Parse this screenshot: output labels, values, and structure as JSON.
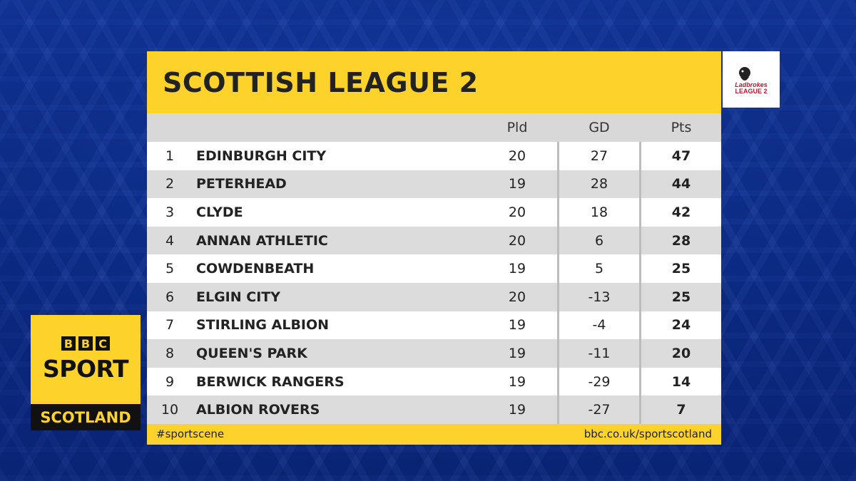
{
  "title": "SCOTTISH LEAGUE 2",
  "logo": {
    "line1": "Ladbrokes",
    "line2": "LEAGUE 2"
  },
  "columns": {
    "pld": "Pld",
    "gd": "GD",
    "pts": "Pts"
  },
  "rows": [
    {
      "pos": "1",
      "team": "EDINBURGH CITY",
      "pld": "20",
      "gd": "27",
      "pts": "47"
    },
    {
      "pos": "2",
      "team": "PETERHEAD",
      "pld": "19",
      "gd": "28",
      "pts": "44"
    },
    {
      "pos": "3",
      "team": "CLYDE",
      "pld": "20",
      "gd": "18",
      "pts": "42"
    },
    {
      "pos": "4",
      "team": "ANNAN ATHLETIC",
      "pld": "20",
      "gd": "6",
      "pts": "28"
    },
    {
      "pos": "5",
      "team": "COWDENBEATH",
      "pld": "19",
      "gd": "5",
      "pts": "25"
    },
    {
      "pos": "6",
      "team": "ELGIN CITY",
      "pld": "20",
      "gd": "-13",
      "pts": "25"
    },
    {
      "pos": "7",
      "team": "STIRLING ALBION",
      "pld": "19",
      "gd": "-4",
      "pts": "24"
    },
    {
      "pos": "8",
      "team": "QUEEN'S PARK",
      "pld": "19",
      "gd": "-11",
      "pts": "20"
    },
    {
      "pos": "9",
      "team": "BERWICK RANGERS",
      "pld": "19",
      "gd": "-29",
      "pts": "14"
    },
    {
      "pos": "10",
      "team": "ALBION ROVERS",
      "pld": "19",
      "gd": "-27",
      "pts": "7"
    }
  ],
  "footer": {
    "hashtag": "#sportscene",
    "url": "bbc.co.uk/sportscotland"
  },
  "brand": {
    "letters": [
      "B",
      "B",
      "C"
    ],
    "sport": "SPORT",
    "region": "SCOTLAND"
  },
  "colors": {
    "accent": "#fdd22b",
    "background": "#0f3aa8",
    "text": "#222222"
  }
}
